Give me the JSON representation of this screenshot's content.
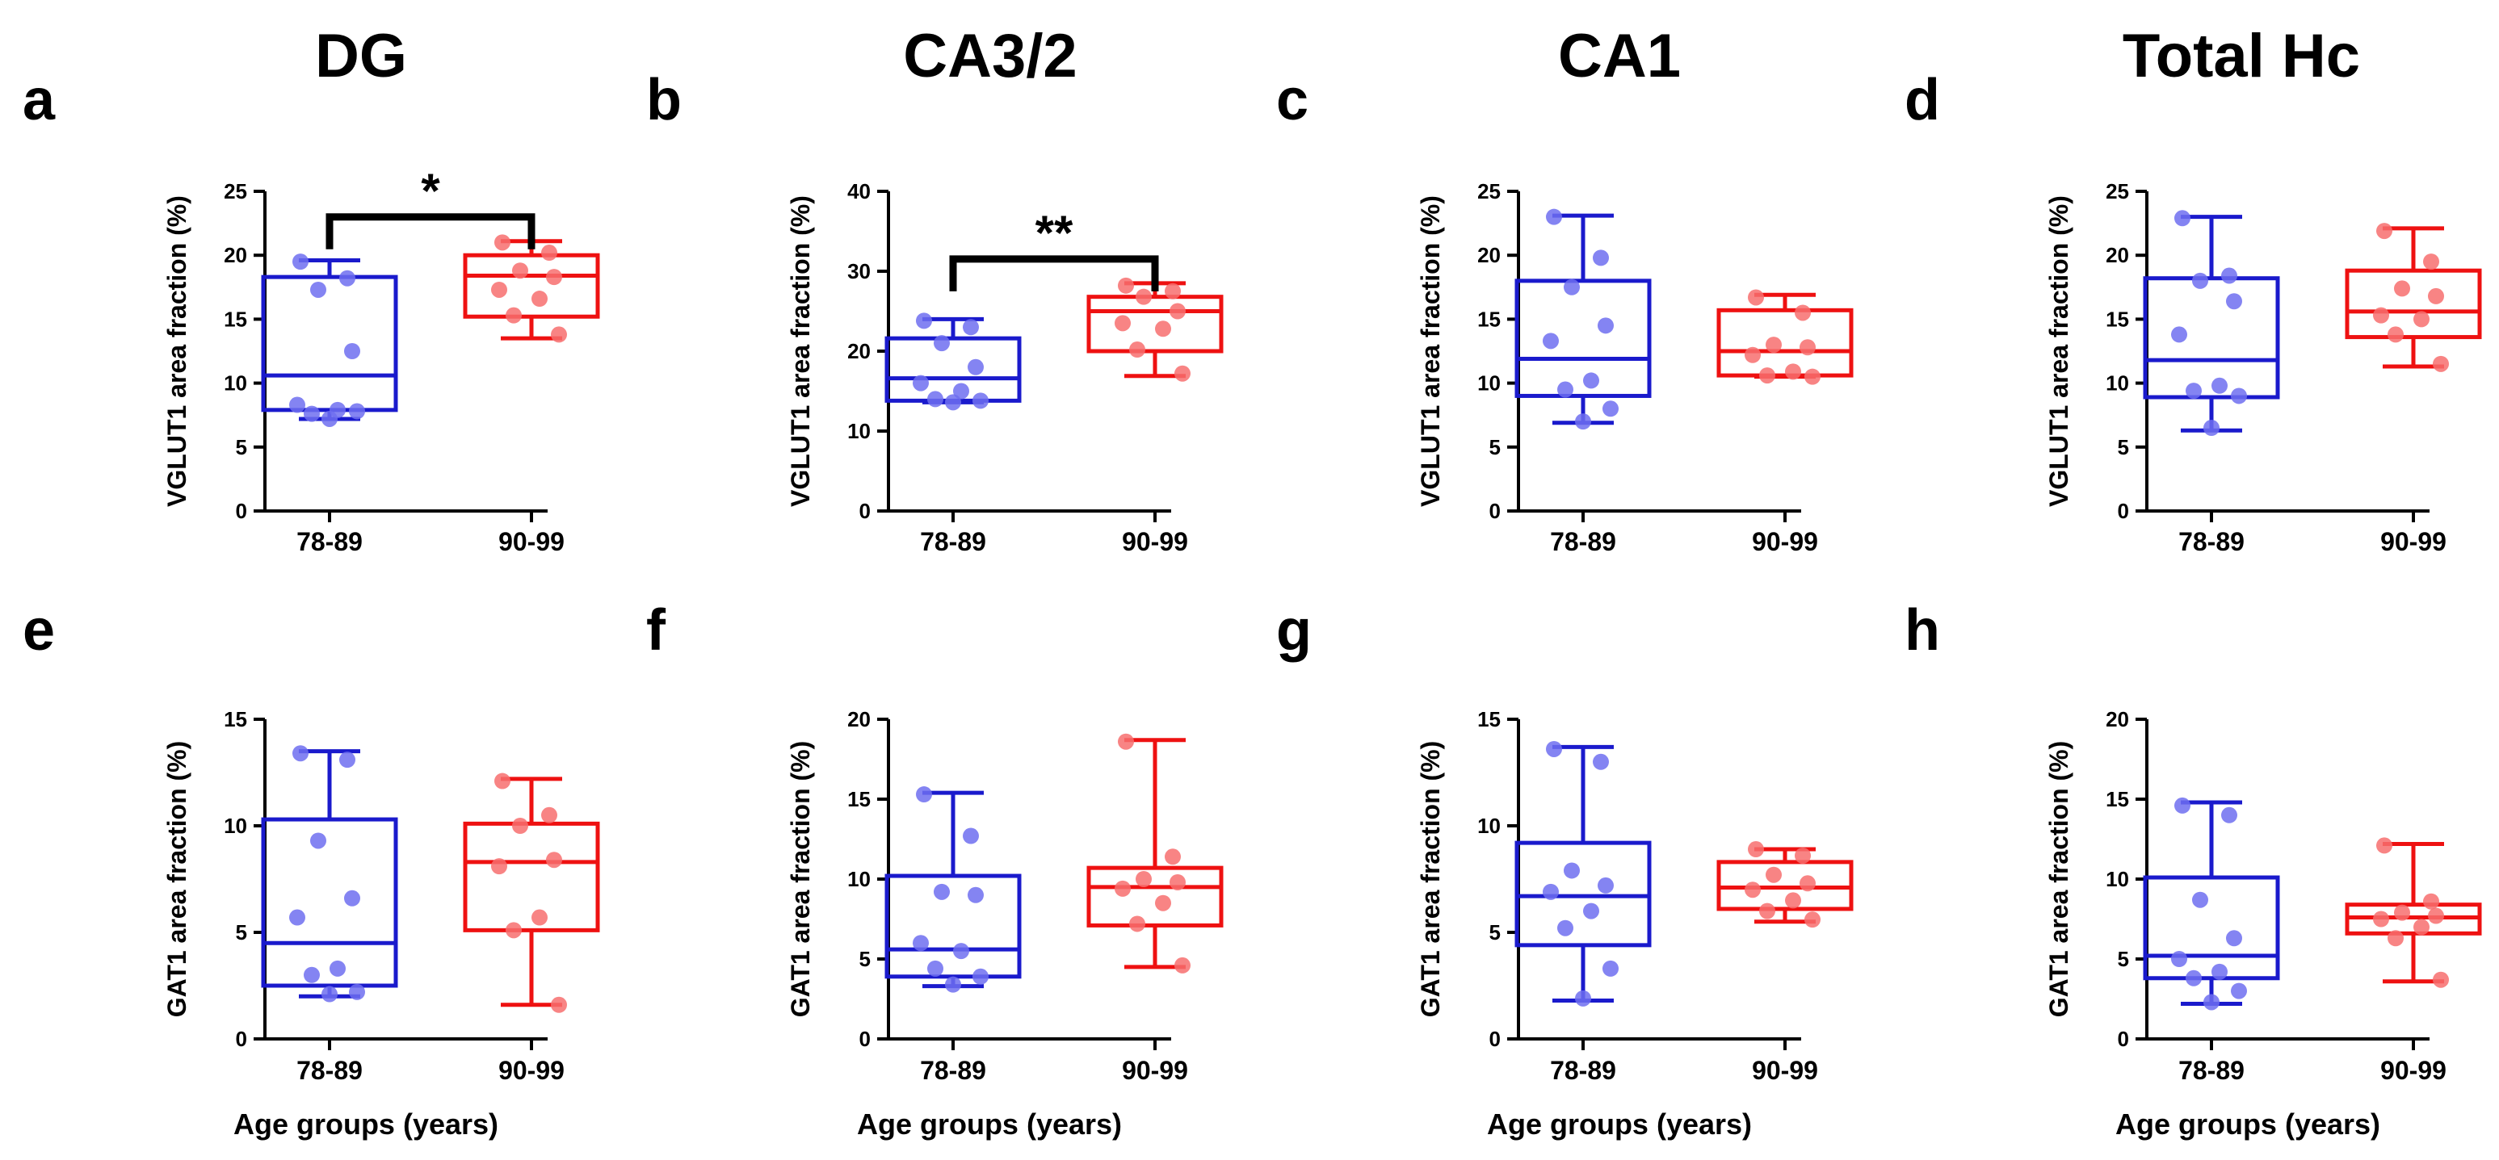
{
  "column_titles": [
    "DG",
    "CA3/2",
    "CA1",
    "Total Hc"
  ],
  "x_axis_label": "Age groups (years)",
  "colors": {
    "group_78_89": "#1a1acc",
    "group_90_99": "#ee1111",
    "points_78_89": "#6f6ff0",
    "points_90_99": "#f76f6f"
  },
  "chart_data": [
    {
      "type": "box",
      "panel": "a",
      "region": "DG",
      "ylabel": "VGLUT1 area fraction (%)",
      "ylim": [
        0,
        25
      ],
      "yticks": [
        0,
        5,
        10,
        15,
        20,
        25
      ],
      "categories": [
        "78-89",
        "90-99"
      ],
      "groups": [
        {
          "name": "78-89",
          "min": 7.2,
          "q1": 7.9,
          "median": 10.6,
          "q3": 18.3,
          "max": 19.6,
          "points": [
            19.5,
            18.2,
            17.3,
            12.5,
            8.3,
            7.9,
            7.6,
            7.8,
            7.2
          ]
        },
        {
          "name": "90-99",
          "min": 13.5,
          "q1": 15.2,
          "median": 18.4,
          "q3": 20.0,
          "max": 21.1,
          "points": [
            21.0,
            20.2,
            18.8,
            18.3,
            17.3,
            16.6,
            15.3,
            13.8
          ]
        }
      ],
      "significance": "*"
    },
    {
      "type": "box",
      "panel": "b",
      "region": "CA3/2",
      "ylabel": "VGLUT1 area fraction (%)",
      "ylim": [
        0,
        40
      ],
      "yticks": [
        0,
        10,
        20,
        30,
        40
      ],
      "categories": [
        "78-89",
        "90-99"
      ],
      "groups": [
        {
          "name": "78-89",
          "min": 13.6,
          "q1": 13.8,
          "median": 16.6,
          "q3": 21.6,
          "max": 24.0,
          "points": [
            23.8,
            23.0,
            21.0,
            18.0,
            16.0,
            15.0,
            14.0,
            13.8,
            13.6
          ]
        },
        {
          "name": "90-99",
          "min": 16.9,
          "q1": 20.0,
          "median": 25.0,
          "q3": 26.8,
          "max": 28.5,
          "points": [
            28.2,
            27.5,
            26.8,
            25.0,
            23.5,
            22.8,
            20.2,
            17.2
          ]
        }
      ],
      "significance": "**"
    },
    {
      "type": "box",
      "panel": "c",
      "region": "CA1",
      "ylabel": "VGLUT1 area fraction (%)",
      "ylim": [
        0,
        25
      ],
      "yticks": [
        0,
        5,
        10,
        15,
        20,
        25
      ],
      "categories": [
        "78-89",
        "90-99"
      ],
      "groups": [
        {
          "name": "78-89",
          "min": 6.9,
          "q1": 9.0,
          "median": 11.9,
          "q3": 18.0,
          "max": 23.1,
          "points": [
            23.0,
            19.8,
            17.5,
            14.5,
            13.3,
            10.2,
            9.5,
            8.0,
            7.0
          ]
        },
        {
          "name": "90-99",
          "min": 10.5,
          "q1": 10.6,
          "median": 12.5,
          "q3": 15.7,
          "max": 16.9,
          "points": [
            16.7,
            15.5,
            13.0,
            12.8,
            12.2,
            10.9,
            10.6,
            10.5
          ]
        }
      ],
      "significance": null
    },
    {
      "type": "box",
      "panel": "d",
      "region": "Total Hc",
      "ylabel": "VGLUT1 area fraction (%)",
      "ylim": [
        0,
        25
      ],
      "yticks": [
        0,
        5,
        10,
        15,
        20,
        25
      ],
      "categories": [
        "78-89",
        "90-99"
      ],
      "groups": [
        {
          "name": "78-89",
          "min": 6.3,
          "q1": 8.9,
          "median": 11.8,
          "q3": 18.2,
          "max": 23.0,
          "points": [
            22.9,
            18.4,
            18.0,
            16.4,
            13.8,
            9.8,
            9.4,
            9.0,
            6.5
          ]
        },
        {
          "name": "90-99",
          "min": 11.3,
          "q1": 13.6,
          "median": 15.6,
          "q3": 18.8,
          "max": 22.1,
          "points": [
            21.9,
            19.5,
            17.4,
            16.8,
            15.3,
            15.0,
            13.8,
            11.5
          ]
        }
      ],
      "significance": null
    },
    {
      "type": "box",
      "panel": "e",
      "region": "DG",
      "ylabel": "GAT1 area fraction (%)",
      "ylim": [
        0,
        15
      ],
      "yticks": [
        0,
        5,
        10,
        15
      ],
      "categories": [
        "78-89",
        "90-99"
      ],
      "groups": [
        {
          "name": "78-89",
          "min": 2.0,
          "q1": 2.5,
          "median": 4.5,
          "q3": 10.3,
          "max": 13.5,
          "points": [
            13.4,
            13.1,
            9.3,
            6.6,
            5.7,
            3.3,
            3.0,
            2.2,
            2.1
          ]
        },
        {
          "name": "90-99",
          "min": 1.6,
          "q1": 5.1,
          "median": 8.3,
          "q3": 10.1,
          "max": 12.2,
          "points": [
            12.1,
            10.5,
            10.0,
            8.4,
            8.1,
            5.7,
            5.1,
            1.6
          ]
        }
      ],
      "significance": null
    },
    {
      "type": "box",
      "panel": "f",
      "region": "CA3/2",
      "ylabel": "GAT1 area fraction (%)",
      "ylim": [
        0,
        20
      ],
      "yticks": [
        0,
        5,
        10,
        15,
        20
      ],
      "categories": [
        "78-89",
        "90-99"
      ],
      "groups": [
        {
          "name": "78-89",
          "min": 3.3,
          "q1": 3.9,
          "median": 5.6,
          "q3": 10.2,
          "max": 15.4,
          "points": [
            15.3,
            12.7,
            9.2,
            9.0,
            6.0,
            5.5,
            4.4,
            3.9,
            3.4
          ]
        },
        {
          "name": "90-99",
          "min": 4.5,
          "q1": 7.1,
          "median": 9.5,
          "q3": 10.7,
          "max": 18.7,
          "points": [
            18.6,
            11.4,
            10.0,
            9.8,
            9.4,
            8.5,
            7.2,
            4.6
          ]
        }
      ],
      "significance": null
    },
    {
      "type": "box",
      "panel": "g",
      "region": "CA1",
      "ylabel": "GAT1 area fraction (%)",
      "ylim": [
        0,
        15
      ],
      "yticks": [
        0,
        5,
        10,
        15
      ],
      "categories": [
        "78-89",
        "90-99"
      ],
      "groups": [
        {
          "name": "78-89",
          "min": 1.8,
          "q1": 4.4,
          "median": 6.7,
          "q3": 9.2,
          "max": 13.7,
          "points": [
            13.6,
            13.0,
            7.9,
            7.2,
            6.9,
            6.0,
            5.2,
            3.3,
            1.9
          ]
        },
        {
          "name": "90-99",
          "min": 5.5,
          "q1": 6.1,
          "median": 7.1,
          "q3": 8.3,
          "max": 8.9,
          "points": [
            8.9,
            8.6,
            7.7,
            7.3,
            7.0,
            6.5,
            6.0,
            5.6
          ]
        }
      ],
      "significance": null
    },
    {
      "type": "box",
      "panel": "h",
      "region": "Total Hc",
      "ylabel": "GAT1 area fraction (%)",
      "ylim": [
        0,
        20
      ],
      "yticks": [
        0,
        5,
        10,
        15,
        20
      ],
      "categories": [
        "78-89",
        "90-99"
      ],
      "groups": [
        {
          "name": "78-89",
          "min": 2.2,
          "q1": 3.8,
          "median": 5.2,
          "q3": 10.1,
          "max": 14.8,
          "points": [
            14.6,
            14.0,
            8.7,
            6.3,
            5.0,
            4.2,
            3.8,
            3.0,
            2.3
          ]
        },
        {
          "name": "90-99",
          "min": 3.6,
          "q1": 6.6,
          "median": 7.6,
          "q3": 8.4,
          "max": 12.2,
          "points": [
            12.1,
            8.6,
            7.9,
            7.7,
            7.5,
            7.0,
            6.3,
            3.7
          ]
        }
      ],
      "significance": null
    }
  ]
}
